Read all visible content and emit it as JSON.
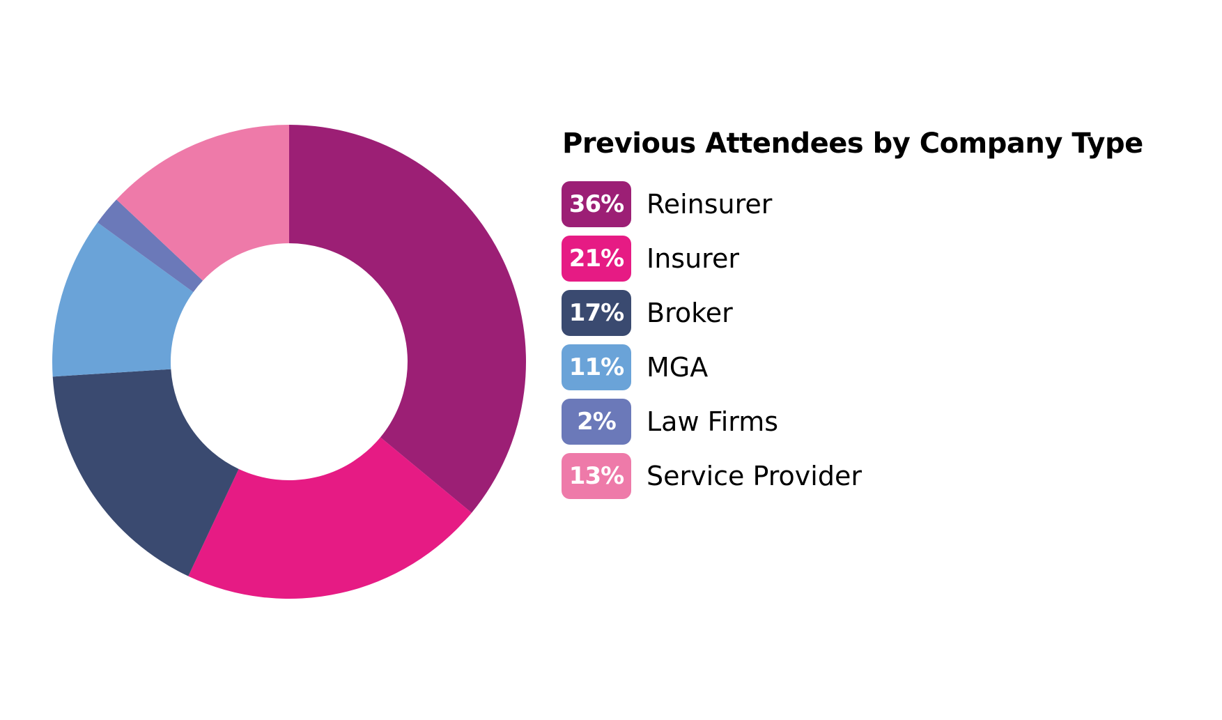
{
  "chart_data": {
    "type": "pie",
    "donut": true,
    "title": "Previous Attendees by Company Type",
    "slices": [
      {
        "label": "Reinsurer",
        "value": 36,
        "display": "36%",
        "color": "#9c1f75"
      },
      {
        "label": "Insurer",
        "value": 21,
        "display": "21%",
        "color": "#e61b84"
      },
      {
        "label": "Broker",
        "value": 17,
        "display": "17%",
        "color": "#3a4a70"
      },
      {
        "label": "MGA",
        "value": 11,
        "display": "11%",
        "color": "#6aa3d8"
      },
      {
        "label": "Law Firms",
        "value": 2,
        "display": "2%",
        "color": "#6b79b9"
      },
      {
        "label": "Service Provider",
        "value": 13,
        "display": "13%",
        "color": "#ee7aa9"
      }
    ],
    "start": "12 o'clock",
    "direction": "clockwise",
    "legend_position": "right"
  }
}
